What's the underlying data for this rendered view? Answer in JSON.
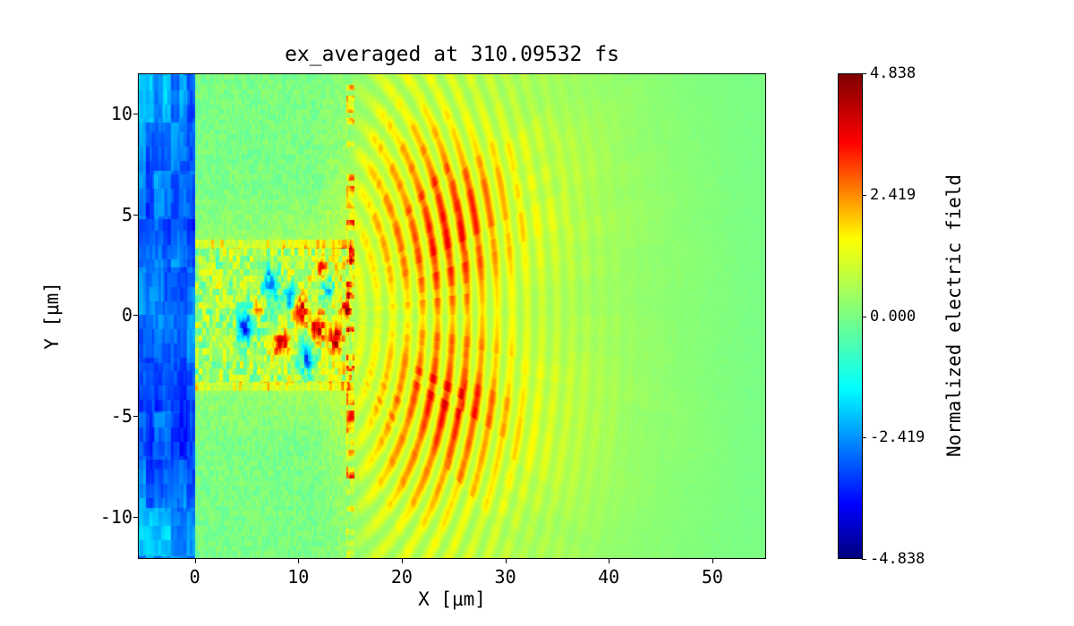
{
  "chart_data": {
    "type": "heatmap",
    "title": "ex_averaged at 310.09532 fs",
    "xlabel": "X [μm]",
    "ylabel": "Y [μm]",
    "colorbar_label": "Normalized electric field",
    "colormap": "jet",
    "vmin": -4.838,
    "vmax": 4.838,
    "xlim": [
      -5.5,
      55.2
    ],
    "ylim": [
      -12.1,
      12.0
    ],
    "xticks": [
      {
        "value": 0,
        "label": "0"
      },
      {
        "value": 10,
        "label": "10"
      },
      {
        "value": 20,
        "label": "20"
      },
      {
        "value": 30,
        "label": "30"
      },
      {
        "value": 40,
        "label": "40"
      },
      {
        "value": 50,
        "label": "50"
      }
    ],
    "yticks": [
      {
        "value": 10,
        "label": "10"
      },
      {
        "value": 5,
        "label": "5"
      },
      {
        "value": 0,
        "label": "0"
      },
      {
        "value": -5,
        "label": "-5"
      },
      {
        "value": -10,
        "label": "-10"
      }
    ],
    "colorbar_ticks": [
      {
        "value": 4.838,
        "label": "4.838"
      },
      {
        "value": 2.419,
        "label": "2.419"
      },
      {
        "value": 0.0,
        "label": "0.000"
      },
      {
        "value": -2.419,
        "label": "-2.419"
      },
      {
        "value": -4.838,
        "label": "-4.838"
      }
    ],
    "grid": {
      "comment": "coarse field values (normalized units) sampled from the image; rows top-to-bottom, y from +10.9 to -10.9 step 2.18; cols x from -3.5 to 53.5 step 3",
      "nx": 20,
      "ny": 11,
      "x0": -3.5,
      "dx": 3.0,
      "y0": 10.9,
      "dy": 2.18,
      "values": [
        [
          -2.2,
          -2.6,
          0.0,
          0.0,
          0.0,
          0.0,
          0.2,
          0.8,
          1.0,
          1.0,
          0.9,
          0.8,
          0.6,
          0.5,
          0.4,
          0.3,
          0.2,
          0.1,
          0.05,
          0.0
        ],
        [
          -2.5,
          -3.0,
          0.0,
          0.0,
          0.0,
          0.0,
          0.3,
          1.2,
          1.5,
          1.6,
          1.4,
          1.2,
          0.9,
          0.7,
          0.5,
          0.4,
          0.25,
          0.15,
          0.1,
          0.0
        ],
        [
          -2.8,
          -3.3,
          0.0,
          0.0,
          0.0,
          0.0,
          0.5,
          1.5,
          1.8,
          2.2,
          2.0,
          1.5,
          1.1,
          0.8,
          0.6,
          0.4,
          0.3,
          0.2,
          0.1,
          0.0
        ],
        [
          -3.0,
          -3.3,
          0.2,
          0.2,
          0.3,
          0.3,
          0.8,
          1.5,
          2.0,
          2.5,
          2.4,
          1.6,
          1.2,
          0.9,
          0.6,
          0.45,
          0.3,
          0.2,
          0.1,
          0.0
        ],
        [
          -2.6,
          -2.9,
          0.4,
          0.5,
          0.6,
          0.7,
          1.0,
          1.3,
          1.8,
          2.2,
          2.0,
          1.4,
          1.0,
          0.8,
          0.6,
          0.4,
          0.3,
          0.2,
          0.1,
          0.0
        ],
        [
          -2.4,
          -2.7,
          0.3,
          -0.3,
          0.2,
          0.5,
          0.8,
          1.0,
          1.2,
          1.5,
          1.4,
          1.1,
          0.9,
          0.7,
          0.5,
          0.4,
          0.25,
          0.15,
          0.1,
          0.0
        ],
        [
          -2.6,
          -2.9,
          0.4,
          0.5,
          0.6,
          0.7,
          1.0,
          1.3,
          1.8,
          2.2,
          2.0,
          1.4,
          1.0,
          0.8,
          0.6,
          0.4,
          0.3,
          0.2,
          0.1,
          0.0
        ],
        [
          -3.0,
          -3.2,
          0.2,
          0.2,
          0.3,
          0.3,
          0.8,
          1.5,
          2.0,
          2.5,
          2.4,
          1.6,
          1.2,
          0.9,
          0.6,
          0.45,
          0.3,
          0.2,
          0.1,
          0.0
        ],
        [
          -3.2,
          -3.4,
          0.0,
          0.0,
          0.0,
          0.0,
          0.5,
          1.5,
          1.8,
          2.2,
          2.0,
          1.5,
          1.1,
          0.8,
          0.6,
          0.4,
          0.3,
          0.2,
          0.1,
          0.0
        ],
        [
          -2.8,
          -3.1,
          0.0,
          0.0,
          0.0,
          0.0,
          0.3,
          1.2,
          1.5,
          1.6,
          1.4,
          1.2,
          0.9,
          0.7,
          0.5,
          0.4,
          0.25,
          0.15,
          0.1,
          0.0
        ],
        [
          -2.3,
          -2.6,
          0.0,
          0.0,
          0.0,
          0.0,
          0.2,
          0.8,
          1.0,
          1.0,
          0.9,
          0.8,
          0.6,
          0.5,
          0.4,
          0.3,
          0.2,
          0.1,
          0.05,
          0.0
        ]
      ]
    },
    "render_hints": {
      "regions": [
        {
          "x_range": [
            -5.5,
            0
          ],
          "description": "negative field region (blue), values ≈ -2.5 to -3.5, blotchy texture"
        },
        {
          "x_range": [
            0,
            15.3
          ],
          "description": "plasma block near zero (green) with fine speckle; turbulent ±3 blobs in |y|<3.3; noisy yellow lines at y≈±3.5; red speckled vertical line at x≈15"
        },
        {
          "x_range": [
            15,
            30
          ],
          "description": "curved positive wavefront arcs (yellow-orange-red), peaks ≈ +2.5, centered near (11.5, 0)"
        },
        {
          "x_range": [
            30,
            55
          ],
          "description": "fading arcs decaying to zero (uniform green)"
        }
      ],
      "arcs": {
        "cx": 11.5,
        "cy": 0,
        "wavelength": 1.45,
        "r_peak": 14,
        "r_width": 14,
        "strength": 0.55
      },
      "blobs": [
        {
          "x": 4.8,
          "y": -0.6,
          "r": 0.7,
          "a": -3.2
        },
        {
          "x": 7.3,
          "y": 1.6,
          "r": 0.8,
          "a": -3.4
        },
        {
          "x": 8.3,
          "y": -1.4,
          "r": 0.7,
          "a": 3.0
        },
        {
          "x": 9.3,
          "y": 0.9,
          "r": 0.6,
          "a": -3.0
        },
        {
          "x": 10.2,
          "y": 0.2,
          "r": 0.7,
          "a": 3.2
        },
        {
          "x": 10.8,
          "y": -2.1,
          "r": 0.8,
          "a": -3.3
        },
        {
          "x": 11.8,
          "y": -0.6,
          "r": 0.7,
          "a": 3.4
        },
        {
          "x": 12.8,
          "y": 1.3,
          "r": 0.6,
          "a": -2.8
        },
        {
          "x": 13.6,
          "y": -1.2,
          "r": 0.6,
          "a": 3.0
        },
        {
          "x": 12.2,
          "y": 2.4,
          "r": 0.5,
          "a": 2.6
        },
        {
          "x": 6.1,
          "y": 0.4,
          "r": 0.5,
          "a": 2.2
        },
        {
          "x": 14.6,
          "y": 0.3,
          "r": 0.5,
          "a": 2.8
        }
      ]
    }
  }
}
